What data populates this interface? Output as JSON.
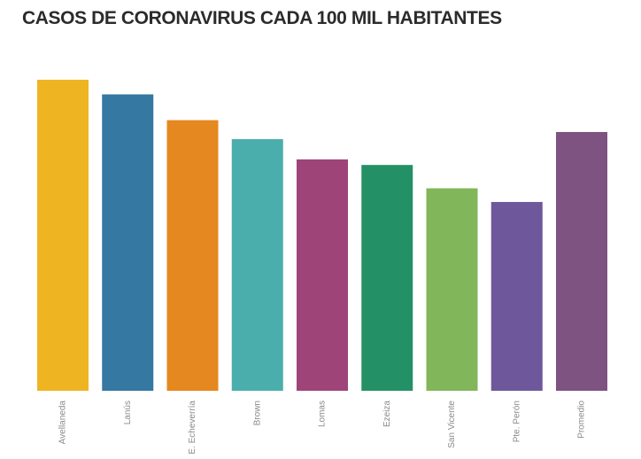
{
  "chart_data": {
    "type": "bar",
    "title": "CASOS DE CORONAVIRUS CADA 100 MIL HABITANTES",
    "xlabel": "",
    "ylabel": "",
    "categories": [
      "Avellaneda",
      "Lanús",
      "E. Echeverría",
      "Brown",
      "Lomas",
      "Ezeiza",
      "San Vicente",
      "Pte. Perón",
      "Promedio"
    ],
    "values": [
      100,
      95.3,
      87,
      80.9,
      74.4,
      72.6,
      65.1,
      60.7,
      83.2
    ],
    "colors": [
      "#EEB422",
      "#3578A1",
      "#E5881F",
      "#4AAEAC",
      "#9E4479",
      "#249065",
      "#82B65A",
      "#6F579C",
      "#7E5281"
    ],
    "ylim": [
      0,
      100
    ],
    "grid": false,
    "legend": "none"
  }
}
